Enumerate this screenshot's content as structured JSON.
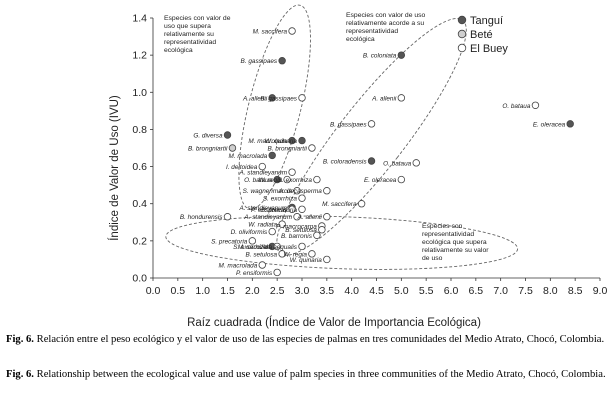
{
  "chart_data": {
    "type": "scatter",
    "xlabel": "Raíz cuadrada (Índice de Valor de Importancia Ecológica)",
    "ylabel": "Índice de Valor de Uso (IVU)",
    "xlim": [
      0,
      9
    ],
    "ylim": [
      0,
      1.4
    ],
    "x_ticks": [
      "0.0",
      "0.5",
      "1.0",
      "1.5",
      "2.0",
      "2.5",
      "3.0",
      "3.5",
      "4.0",
      "4.5",
      "5.0",
      "5.5",
      "6.0",
      "6.5",
      "7.0",
      "7.5",
      "8.0",
      "8.5",
      "9.0"
    ],
    "y_ticks": [
      "0.0",
      "0.2",
      "0.4",
      "0.6",
      "0.8",
      "1.0",
      "1.2",
      "1.4"
    ],
    "grid": false,
    "legend_position": "top-right",
    "series": [
      {
        "name": "Tanguí",
        "marker": "filled",
        "color": "#555555",
        "points": [
          {
            "x": 2.6,
            "y": 1.17,
            "label": "B. gassipaes"
          },
          {
            "x": 5.0,
            "y": 1.2,
            "label": "B. coloniata"
          },
          {
            "x": 2.4,
            "y": 0.97,
            "label": "A. allenii"
          },
          {
            "x": 8.4,
            "y": 0.83,
            "label": "E. oleracea"
          },
          {
            "x": 1.5,
            "y": 0.77,
            "label": "G. diversa"
          },
          {
            "x": 2.8,
            "y": 0.74,
            "label": "M. macrolada"
          },
          {
            "x": 3.0,
            "y": 0.74,
            "label": "W. quinaria"
          },
          {
            "x": 2.4,
            "y": 0.66,
            "label": "M. macrolada"
          },
          {
            "x": 4.4,
            "y": 0.63,
            "label": "B. coloradensis"
          },
          {
            "x": 2.5,
            "y": 0.53,
            "label": "O. bataua"
          },
          {
            "x": 2.8,
            "y": 0.38,
            "label": "A. standleyanum"
          },
          {
            "x": 2.4,
            "y": 0.17,
            "label": "S. exorrhiza"
          }
        ]
      },
      {
        "name": "Beté",
        "marker": "grey",
        "color": "#cfcfcf",
        "points": [
          {
            "x": 1.6,
            "y": 0.7,
            "label": "B. brongniartii"
          }
        ]
      },
      {
        "name": "El Buey",
        "marker": "open",
        "color": "#ffffff",
        "points": [
          {
            "x": 2.8,
            "y": 1.33,
            "label": "M. saccifera"
          },
          {
            "x": 3.0,
            "y": 0.97,
            "label": "B. gassipaes"
          },
          {
            "x": 5.0,
            "y": 0.97,
            "label": "A. allenii"
          },
          {
            "x": 7.7,
            "y": 0.93,
            "label": "O. bataua"
          },
          {
            "x": 4.4,
            "y": 0.83,
            "label": "B. gassipaes"
          },
          {
            "x": 3.2,
            "y": 0.7,
            "label": "B. brongniartii"
          },
          {
            "x": 5.3,
            "y": 0.62,
            "label": "O. bataua"
          },
          {
            "x": 5.0,
            "y": 0.53,
            "label": "E. oleracea"
          },
          {
            "x": 2.2,
            "y": 0.6,
            "label": "I. deltoidea"
          },
          {
            "x": 2.8,
            "y": 0.57,
            "label": "A. standleyanum"
          },
          {
            "x": 2.7,
            "y": 0.53,
            "label": "W. regia"
          },
          {
            "x": 3.3,
            "y": 0.53,
            "label": "S. exorrhiza"
          },
          {
            "x": 2.9,
            "y": 0.47,
            "label": "S. wagnerimarcia"
          },
          {
            "x": 3.5,
            "y": 0.47,
            "label": "A. decasperma"
          },
          {
            "x": 3.0,
            "y": 0.43,
            "label": "S. exorrhiza"
          },
          {
            "x": 4.2,
            "y": 0.4,
            "label": "M. saccifera"
          },
          {
            "x": 2.8,
            "y": 0.37,
            "label": "P. ensiformis"
          },
          {
            "x": 3.0,
            "y": 0.37,
            "label": "S. precatoria"
          },
          {
            "x": 1.5,
            "y": 0.33,
            "label": "B. hondurensis"
          },
          {
            "x": 2.9,
            "y": 0.33,
            "label": "A. standleyanum"
          },
          {
            "x": 3.5,
            "y": 0.33,
            "label": "A. allenii"
          },
          {
            "x": 2.6,
            "y": 0.29,
            "label": "W. radiata"
          },
          {
            "x": 3.4,
            "y": 0.28,
            "label": "P. macrocarpa"
          },
          {
            "x": 3.4,
            "y": 0.26,
            "label": "B. setulosa"
          },
          {
            "x": 3.3,
            "y": 0.23,
            "label": "B. barronis"
          },
          {
            "x": 2.4,
            "y": 0.25,
            "label": "D. oliviformis"
          },
          {
            "x": 2.0,
            "y": 0.2,
            "label": "S. precatoria"
          },
          {
            "x": 2.5,
            "y": 0.17,
            "label": "M. saccifera"
          },
          {
            "x": 3.0,
            "y": 0.17,
            "label": "W. aegualis"
          },
          {
            "x": 2.6,
            "y": 0.13,
            "label": "B. setulosa"
          },
          {
            "x": 3.2,
            "y": 0.13,
            "label": "W. regia"
          },
          {
            "x": 3.5,
            "y": 0.1,
            "label": "W. quinaria"
          },
          {
            "x": 2.2,
            "y": 0.07,
            "label": "M. macrolada"
          },
          {
            "x": 2.5,
            "y": 0.03,
            "label": "P. ensiformis"
          }
        ]
      }
    ],
    "annotations": [
      {
        "text": "Especies con valor de uso que supera relativamente su representatividad ecológica"
      },
      {
        "text": "Especies con valor de uso relativamente acorde a su representatividad ecológica"
      },
      {
        "text": "Especies con representatividad ecológica que supera relativamente su valor de uso"
      }
    ]
  },
  "caption": {
    "es_label": "Fig. 6.",
    "es_text": "Relación entre el peso ecológico y el valor de uso de las especies de palmas en tres comunidades del Medio Atrato, Chocó, Colombia.",
    "en_label": "Fig. 6.",
    "en_text": "Relationship between the ecological value and use value of palm species in three communities of the Medio Atrato, Chocó, Colombia."
  }
}
